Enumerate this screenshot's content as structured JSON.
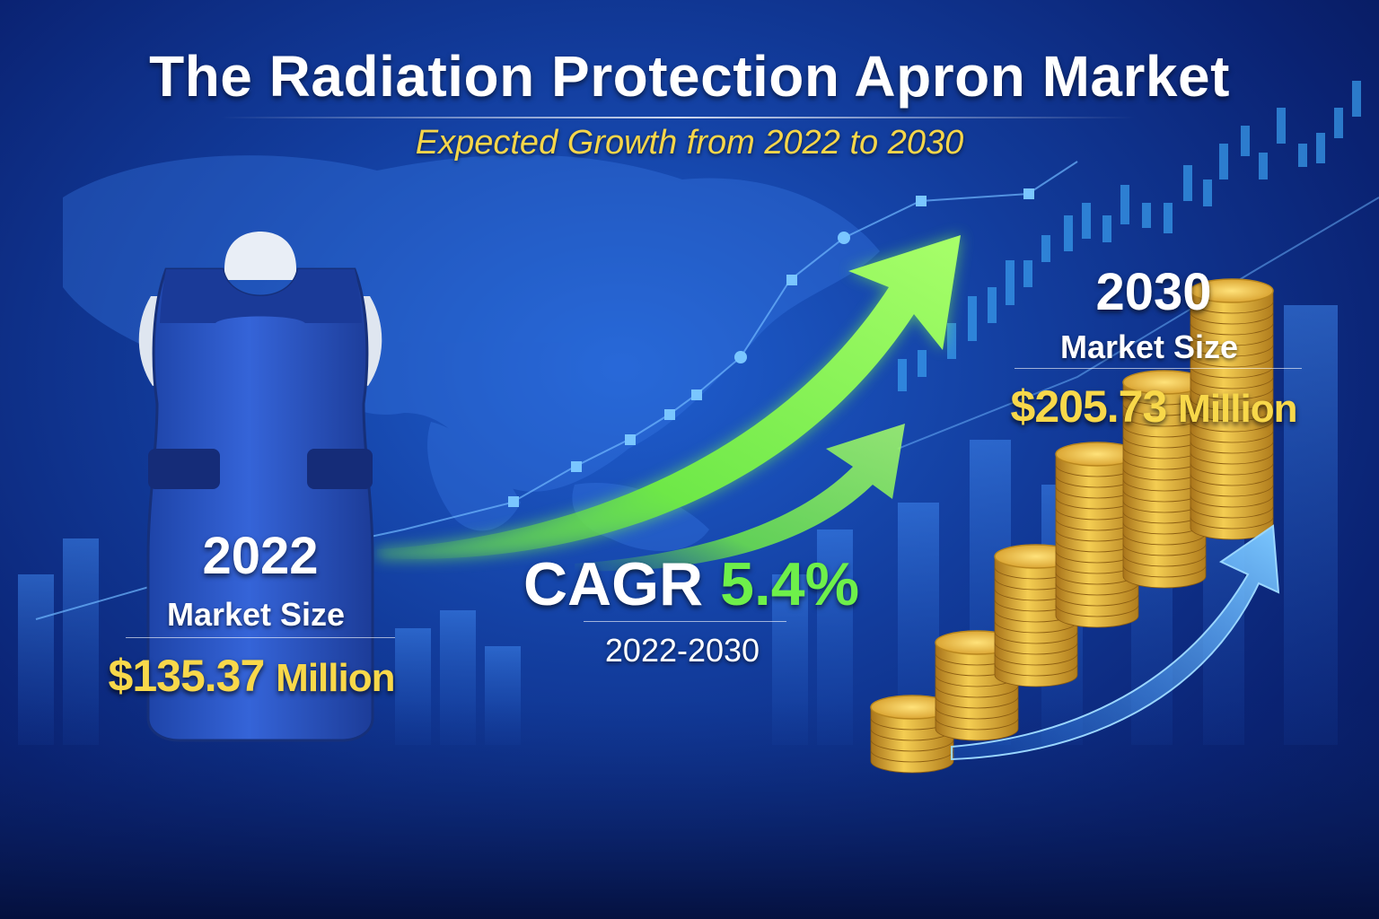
{
  "title": "The Radiation Protection Apron Market",
  "subtitle": "Expected Growth from 2022 to 2030",
  "start": {
    "year": "2022",
    "label": "Market Size",
    "value": "$135.37",
    "unit": "Million"
  },
  "end": {
    "year": "2030",
    "label": "Market Size",
    "value": "$205.73",
    "unit": "Million"
  },
  "cagr": {
    "label": "CAGR",
    "value": "5.4%",
    "period": "2022-2030"
  },
  "colors": {
    "background": "#123c9c",
    "title": "#ffffff",
    "subtitle": "#f6d64a",
    "value": "#f8d84a",
    "growth_arrow": "#6ef04a",
    "apron": "#2d59c9",
    "coin": "#e8b83a"
  },
  "icons": [
    "world-map-icon",
    "apron-icon",
    "growth-arrow-icon",
    "coin-stack-icon",
    "candlestick-chart-icon"
  ]
}
